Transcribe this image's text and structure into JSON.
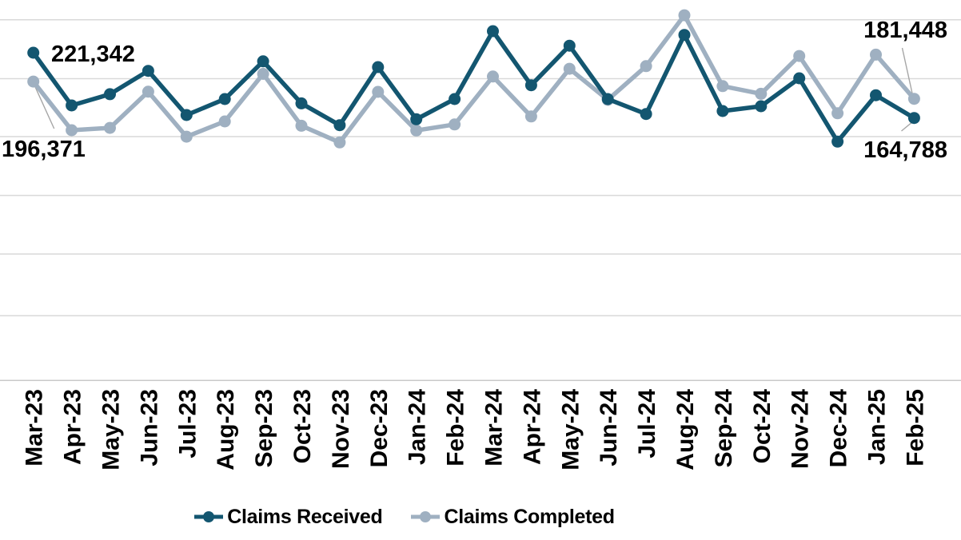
{
  "chart_data": {
    "type": "line",
    "title": "",
    "categories": [
      "Mar-23",
      "Apr-23",
      "May-23",
      "Jun-23",
      "Jul-23",
      "Aug-23",
      "Sep-23",
      "Oct-23",
      "Nov-23",
      "Dec-23",
      "Jan-24",
      "Feb-24",
      "Mar-24",
      "Apr-24",
      "May-24",
      "Jun-24",
      "Jul-24",
      "Aug-24",
      "Sep-24",
      "Oct-24",
      "Nov-24",
      "Dec-24",
      "Jan-25",
      "Feb-25"
    ],
    "series": [
      {
        "name": "Claims Received",
        "values": [
          221342,
          175700,
          185400,
          205600,
          167400,
          181200,
          213900,
          177500,
          158600,
          208900,
          163700,
          181200,
          240000,
          193200,
          227400,
          181200,
          168300,
          236800,
          170800,
          175000,
          199200,
          144300,
          184500,
          164788
        ]
      },
      {
        "name": "Claims Completed",
        "values": [
          196371,
          154200,
          156200,
          187600,
          148600,
          161800,
          203000,
          158100,
          143600,
          187400,
          154000,
          159200,
          200700,
          166100,
          207400,
          180500,
          209700,
          253800,
          192400,
          185800,
          218500,
          168900,
          219700,
          181448
        ]
      }
    ],
    "callout_labels": [
      {
        "series": "Claims Received",
        "category": "Mar-23",
        "text": "221,342"
      },
      {
        "series": "Claims Completed",
        "category": "Mar-23",
        "text": "196,371"
      },
      {
        "series": "Claims Completed",
        "category": "Feb-25",
        "text": "181,448"
      },
      {
        "series": "Claims Received",
        "category": "Feb-25",
        "text": "164,788"
      }
    ],
    "legend_position": "bottom",
    "grid": "horizontal-only",
    "y_axis_labels_visible": false,
    "x_tick_rotation_deg": 90,
    "ylim_estimated": [
      130000,
      267000
    ],
    "gridline_interval_estimated": 50000
  },
  "labels": {
    "received_first": "221,342",
    "completed_first": "196,371",
    "completed_last": "181,448",
    "received_last": "164,788"
  },
  "legend": {
    "received": "Claims Received",
    "completed": "Claims Completed"
  },
  "colors": {
    "claims_received": "#135670",
    "claims_completed": "#9fb0c1",
    "gridline": "#d9d9d9",
    "axis_line": "#c9c9c9",
    "leader_line": "#a6a6a6",
    "label_text": "#000000"
  }
}
